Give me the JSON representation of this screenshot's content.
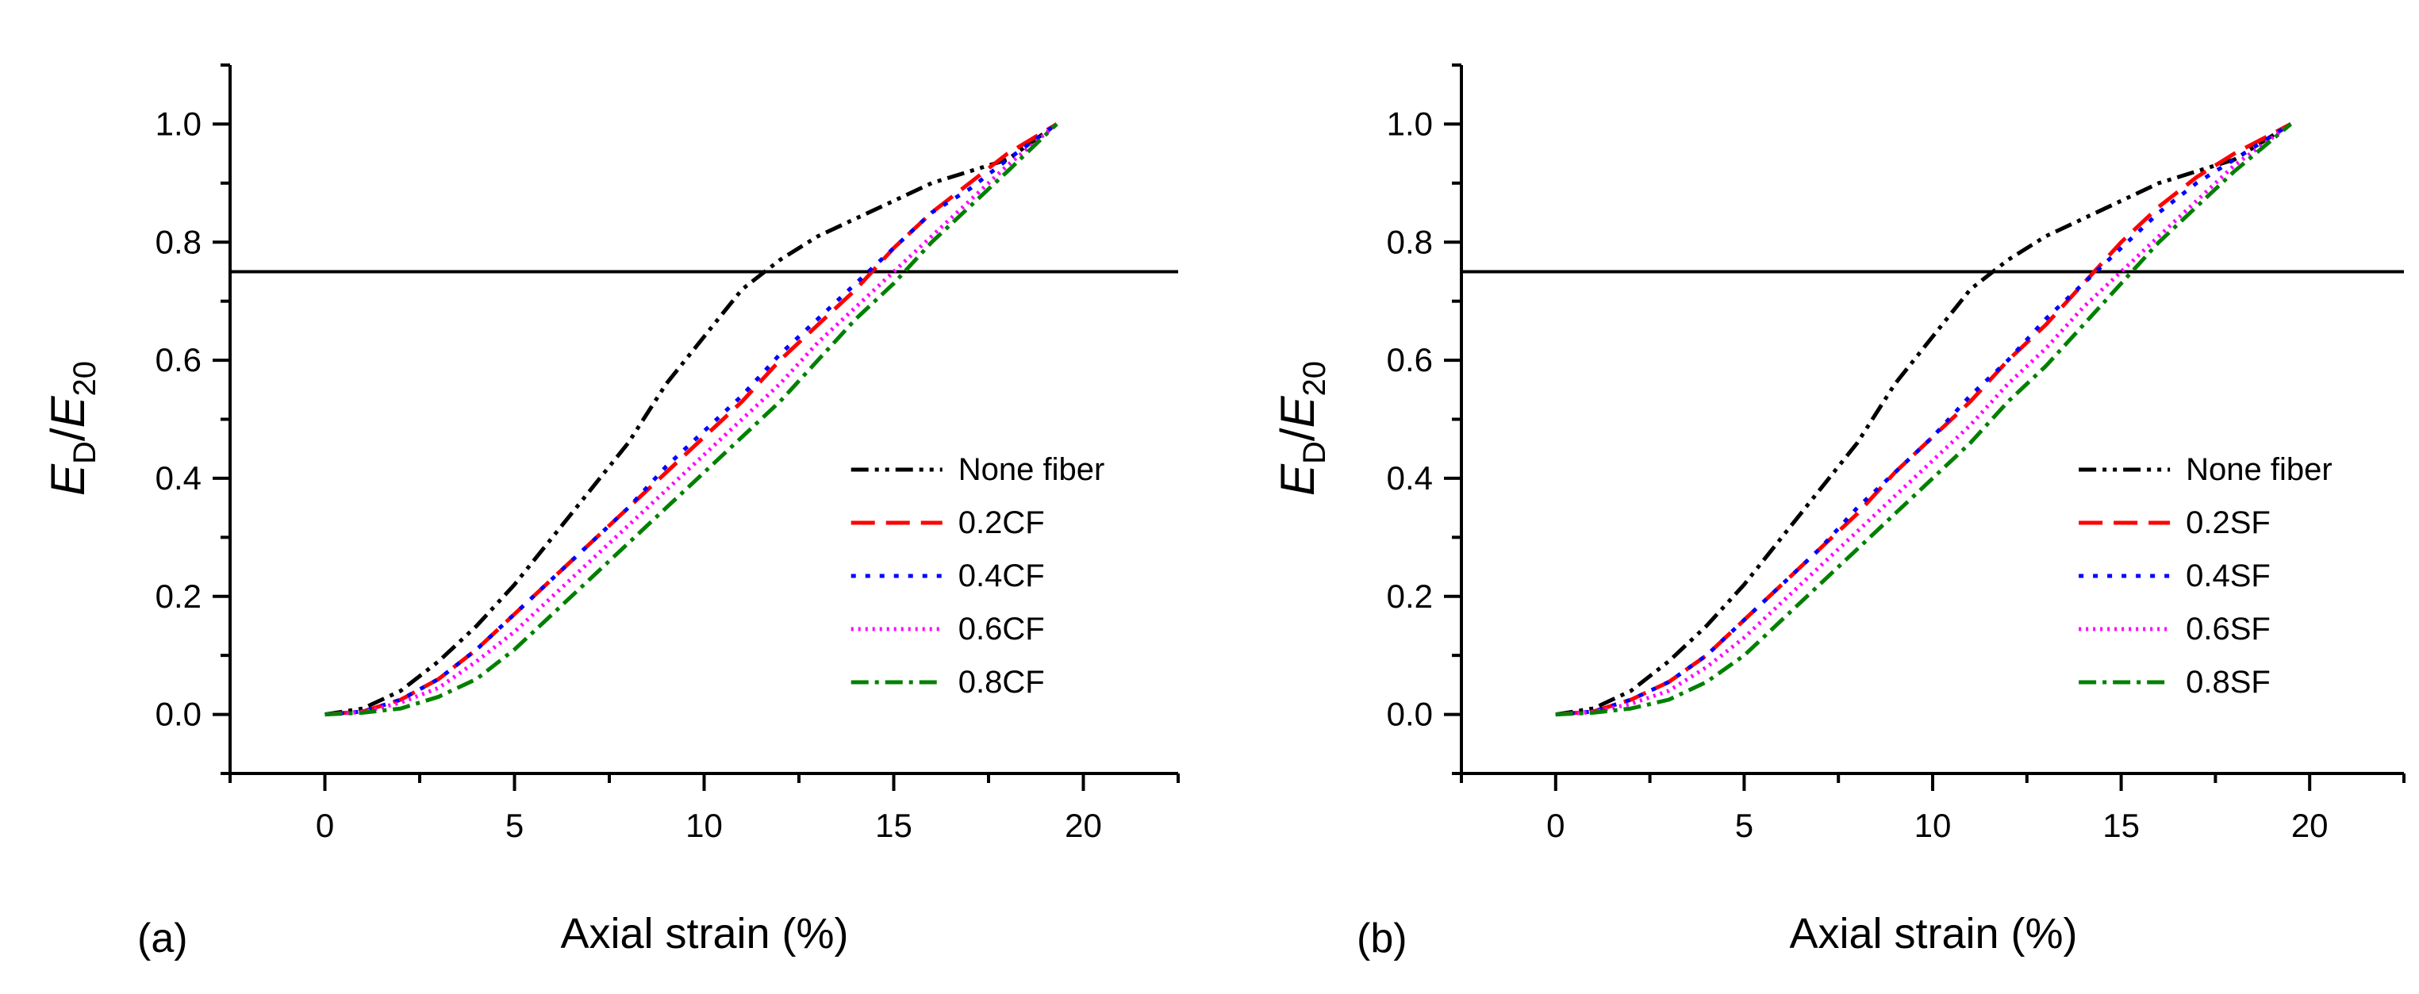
{
  "colors": {
    "axis": "#000000",
    "reference_line": "#000000"
  },
  "chart_data": [
    {
      "type": "line",
      "panel_label": "(a)",
      "xlabel": "Axial strain (%)",
      "ylabel": {
        "E1": "E",
        "s1": "D",
        "slash": "/",
        "E2": "E",
        "s2": "20"
      },
      "xlim": [
        -2.5,
        22.5
      ],
      "ylim": [
        -0.1,
        1.1
      ],
      "xticks": [
        0,
        5,
        10,
        15,
        20
      ],
      "xtick_labels": [
        "0",
        "5",
        "10",
        "15",
        "20"
      ],
      "yticks": [
        0.0,
        0.2,
        0.4,
        0.6,
        0.8,
        1.0
      ],
      "ytick_labels": [
        "0.0",
        "0.2",
        "0.4",
        "0.6",
        "0.8",
        "1.0"
      ],
      "reference_line": {
        "y": 0.75
      },
      "grid": false,
      "legend_position": "center-right",
      "series": [
        {
          "name": "None fiber",
          "color": "#000000",
          "dash": "dash-dot-dot",
          "x": [
            0,
            1,
            2,
            3,
            4,
            5,
            6,
            7,
            8,
            9,
            10,
            11,
            12,
            13,
            14,
            15,
            16,
            17,
            18,
            19.3
          ],
          "y": [
            0.0,
            0.01,
            0.04,
            0.09,
            0.15,
            0.22,
            0.3,
            0.38,
            0.46,
            0.56,
            0.64,
            0.72,
            0.77,
            0.81,
            0.84,
            0.87,
            0.9,
            0.92,
            0.94,
            1.0
          ]
        },
        {
          "name": "0.2CF",
          "color": "#ff0000",
          "dash": "dash",
          "x": [
            0,
            1,
            2,
            3,
            4,
            5,
            6,
            7,
            8,
            9,
            10,
            11,
            12,
            13,
            14,
            15,
            16,
            17,
            18,
            19.3
          ],
          "y": [
            0.0,
            0.005,
            0.025,
            0.06,
            0.11,
            0.17,
            0.23,
            0.29,
            0.35,
            0.41,
            0.47,
            0.53,
            0.6,
            0.66,
            0.72,
            0.79,
            0.85,
            0.9,
            0.95,
            1.0
          ]
        },
        {
          "name": "0.4CF",
          "color": "#0000ff",
          "dash": "dot",
          "x": [
            0,
            1,
            2,
            3,
            4,
            5,
            6,
            7,
            8,
            9,
            10,
            11,
            12,
            13,
            14,
            15,
            16,
            17,
            18,
            19.3
          ],
          "y": [
            0.0,
            0.005,
            0.025,
            0.06,
            0.11,
            0.17,
            0.23,
            0.29,
            0.35,
            0.42,
            0.48,
            0.54,
            0.61,
            0.67,
            0.73,
            0.79,
            0.85,
            0.89,
            0.94,
            1.0
          ]
        },
        {
          "name": "0.6CF",
          "color": "#ff00ff",
          "dash": "short-dot",
          "x": [
            0,
            1,
            2,
            3,
            4,
            5,
            6,
            7,
            8,
            9,
            10,
            11,
            12,
            13,
            14,
            15,
            16,
            17,
            18,
            19.3
          ],
          "y": [
            0.0,
            0.004,
            0.02,
            0.045,
            0.09,
            0.14,
            0.2,
            0.26,
            0.32,
            0.38,
            0.44,
            0.5,
            0.56,
            0.63,
            0.69,
            0.75,
            0.81,
            0.87,
            0.93,
            1.0
          ]
        },
        {
          "name": "0.8CF",
          "color": "#008000",
          "dash": "dash-dot",
          "x": [
            0,
            1,
            2,
            3,
            4,
            5,
            6,
            7,
            8,
            9,
            10,
            11,
            12,
            13,
            14,
            15,
            16,
            17,
            18,
            19.3
          ],
          "y": [
            0.0,
            0.003,
            0.01,
            0.03,
            0.06,
            0.11,
            0.17,
            0.23,
            0.29,
            0.35,
            0.41,
            0.47,
            0.53,
            0.6,
            0.67,
            0.73,
            0.8,
            0.86,
            0.92,
            1.0
          ]
        }
      ]
    },
    {
      "type": "line",
      "panel_label": "(b)",
      "xlabel": "Axial strain (%)",
      "ylabel": {
        "E1": "E",
        "s1": "D",
        "slash": "/",
        "E2": "E",
        "s2": "20"
      },
      "xlim": [
        -2.5,
        22.5
      ],
      "ylim": [
        -0.1,
        1.1
      ],
      "xticks": [
        0,
        5,
        10,
        15,
        20
      ],
      "xtick_labels": [
        "0",
        "5",
        "10",
        "15",
        "20"
      ],
      "yticks": [
        0.0,
        0.2,
        0.4,
        0.6,
        0.8,
        1.0
      ],
      "ytick_labels": [
        "0.0",
        "0.2",
        "0.4",
        "0.6",
        "0.8",
        "1.0"
      ],
      "reference_line": {
        "y": 0.75
      },
      "grid": false,
      "legend_position": "center-right",
      "series": [
        {
          "name": "None fiber",
          "color": "#000000",
          "dash": "dash-dot-dot",
          "x": [
            0,
            1,
            2,
            3,
            4,
            5,
            6,
            7,
            8,
            9,
            10,
            11,
            12,
            13,
            14,
            15,
            16,
            17,
            18,
            19.5
          ],
          "y": [
            0.0,
            0.01,
            0.04,
            0.09,
            0.15,
            0.22,
            0.3,
            0.38,
            0.46,
            0.56,
            0.64,
            0.72,
            0.77,
            0.81,
            0.84,
            0.87,
            0.9,
            0.92,
            0.94,
            1.0
          ]
        },
        {
          "name": "0.2SF",
          "color": "#ff0000",
          "dash": "dash",
          "x": [
            0,
            1,
            2,
            3,
            4,
            5,
            6,
            7,
            8,
            9,
            10,
            11,
            12,
            13,
            14,
            15,
            16,
            17,
            18,
            19.5
          ],
          "y": [
            0.0,
            0.005,
            0.025,
            0.055,
            0.1,
            0.16,
            0.22,
            0.28,
            0.34,
            0.41,
            0.47,
            0.53,
            0.6,
            0.66,
            0.73,
            0.8,
            0.86,
            0.91,
            0.95,
            1.0
          ]
        },
        {
          "name": "0.4SF",
          "color": "#0000ff",
          "dash": "dot",
          "x": [
            0,
            1,
            2,
            3,
            4,
            5,
            6,
            7,
            8,
            9,
            10,
            11,
            12,
            13,
            14,
            15,
            16,
            17,
            18,
            19.5
          ],
          "y": [
            0.0,
            0.005,
            0.025,
            0.055,
            0.1,
            0.16,
            0.22,
            0.28,
            0.35,
            0.41,
            0.47,
            0.54,
            0.6,
            0.67,
            0.73,
            0.79,
            0.85,
            0.9,
            0.94,
            1.0
          ]
        },
        {
          "name": "0.6SF",
          "color": "#ff00ff",
          "dash": "short-dot",
          "x": [
            0,
            1,
            2,
            3,
            4,
            5,
            6,
            7,
            8,
            9,
            10,
            11,
            12,
            13,
            14,
            15,
            16,
            17,
            18,
            19.5
          ],
          "y": [
            0.0,
            0.004,
            0.018,
            0.04,
            0.08,
            0.13,
            0.19,
            0.25,
            0.31,
            0.37,
            0.43,
            0.49,
            0.56,
            0.62,
            0.69,
            0.75,
            0.81,
            0.87,
            0.93,
            1.0
          ]
        },
        {
          "name": "0.8SF",
          "color": "#008000",
          "dash": "dash-dot",
          "x": [
            0,
            1,
            2,
            3,
            4,
            5,
            6,
            7,
            8,
            9,
            10,
            11,
            12,
            13,
            14,
            15,
            16,
            17,
            18,
            19.5
          ],
          "y": [
            0.0,
            0.003,
            0.01,
            0.025,
            0.055,
            0.1,
            0.16,
            0.22,
            0.28,
            0.34,
            0.4,
            0.46,
            0.53,
            0.59,
            0.66,
            0.73,
            0.8,
            0.86,
            0.92,
            1.0
          ]
        }
      ]
    }
  ]
}
